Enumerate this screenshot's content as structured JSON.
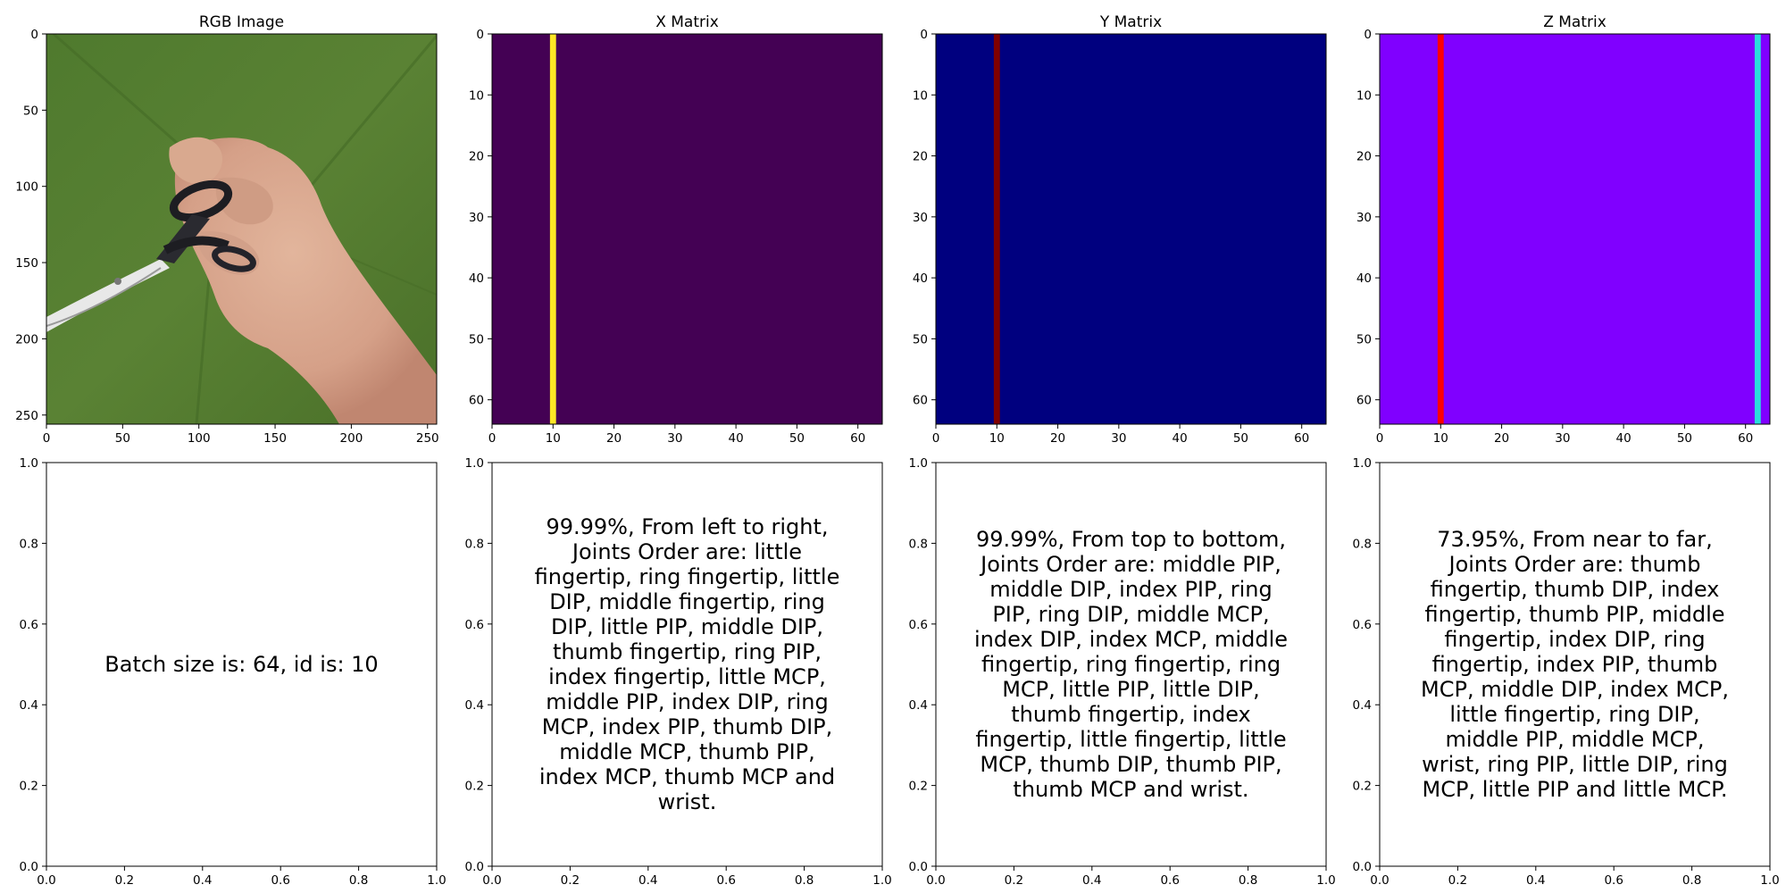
{
  "chart_data": [
    {
      "type": "heatmap",
      "title": "RGB Image",
      "xlabel": "",
      "ylabel": "",
      "xlim": [
        0,
        256
      ],
      "ylim": [
        256,
        0
      ],
      "xticks": [
        0,
        50,
        100,
        150,
        200,
        250
      ],
      "yticks": [
        0,
        50,
        100,
        150,
        200,
        250
      ],
      "image": "photo of a hand holding scissors on a green background",
      "colors": {
        "background": "#557b31",
        "skin": "#d8a88e"
      }
    },
    {
      "type": "heatmap",
      "title": "X Matrix",
      "xlabel": "",
      "ylabel": "",
      "xlim": [
        0,
        64
      ],
      "ylim": [
        64,
        0
      ],
      "xticks": [
        0,
        10,
        20,
        30,
        40,
        50,
        60
      ],
      "yticks": [
        0,
        10,
        20,
        30,
        40,
        50,
        60
      ],
      "background_color": "#440154",
      "highlights": [
        {
          "column": 10,
          "color": "#fde725"
        }
      ]
    },
    {
      "type": "heatmap",
      "title": "Y Matrix",
      "xlabel": "",
      "ylabel": "",
      "xlim": [
        0,
        64
      ],
      "ylim": [
        64,
        0
      ],
      "xticks": [
        0,
        10,
        20,
        30,
        40,
        50,
        60
      ],
      "yticks": [
        0,
        10,
        20,
        30,
        40,
        50,
        60
      ],
      "background_color": "#00007f",
      "highlights": [
        {
          "column": 10,
          "color": "#800000"
        }
      ]
    },
    {
      "type": "heatmap",
      "title": "Z Matrix",
      "xlabel": "",
      "ylabel": "",
      "xlim": [
        0,
        64
      ],
      "ylim": [
        64,
        0
      ],
      "xticks": [
        0,
        10,
        20,
        30,
        40,
        50,
        60
      ],
      "yticks": [
        0,
        10,
        20,
        30,
        40,
        50,
        60
      ],
      "background_color": "#8000ff",
      "highlights": [
        {
          "column": 10,
          "color": "#ff0000"
        },
        {
          "column": 62,
          "color": "#2adddd"
        }
      ]
    },
    {
      "type": "table",
      "title": "",
      "xlim": [
        0,
        1
      ],
      "ylim": [
        0,
        1
      ],
      "xticks": [
        0.0,
        0.2,
        0.4,
        0.6,
        0.8,
        1.0
      ],
      "yticks": [
        0.0,
        0.2,
        0.4,
        0.6,
        0.8,
        1.0
      ],
      "text": "Batch size is: 64, id is: 10"
    },
    {
      "type": "table",
      "title": "",
      "xlim": [
        0,
        1
      ],
      "ylim": [
        0,
        1
      ],
      "xticks": [
        0.0,
        0.2,
        0.4,
        0.6,
        0.8,
        1.0
      ],
      "yticks": [
        0.0,
        0.2,
        0.4,
        0.6,
        0.8,
        1.0
      ],
      "text": "99.99%, From left to right, Joints Order are: little fingertip, ring fingertip, little DIP, middle fingertip, ring DIP, little PIP, middle DIP, thumb fingertip, ring PIP, index fingertip, little MCP, middle PIP, index DIP, ring MCP, index PIP, thumb DIP, middle MCP, thumb PIP, index MCP, thumb MCP and wrist."
    },
    {
      "type": "table",
      "title": "",
      "xlim": [
        0,
        1
      ],
      "ylim": [
        0,
        1
      ],
      "xticks": [
        0.0,
        0.2,
        0.4,
        0.6,
        0.8,
        1.0
      ],
      "yticks": [
        0.0,
        0.2,
        0.4,
        0.6,
        0.8,
        1.0
      ],
      "text": "99.99%, From top to bottom, Joints Order are: middle PIP, middle DIP, index PIP, ring PIP, ring DIP, middle MCP, index DIP, index MCP, middle fingertip, ring fingertip, ring MCP, little PIP, little DIP, thumb fingertip, index fingertip, little fingertip, little MCP, thumb DIP, thumb PIP, thumb MCP and wrist."
    },
    {
      "type": "table",
      "title": "",
      "xlim": [
        0,
        1
      ],
      "ylim": [
        0,
        1
      ],
      "xticks": [
        0.0,
        0.2,
        0.4,
        0.6,
        0.8,
        1.0
      ],
      "yticks": [
        0.0,
        0.2,
        0.4,
        0.6,
        0.8,
        1.0
      ],
      "text": "73.95%, From near to far, Joints Order are: thumb fingertip, thumb DIP, index fingertip, thumb PIP, middle fingertip, index DIP, ring fingertip, index PIP, thumb MCP, middle DIP, index MCP, little fingertip, ring DIP, middle PIP, middle MCP, wrist, ring PIP, little DIP, ring MCP, little PIP and little MCP."
    }
  ]
}
